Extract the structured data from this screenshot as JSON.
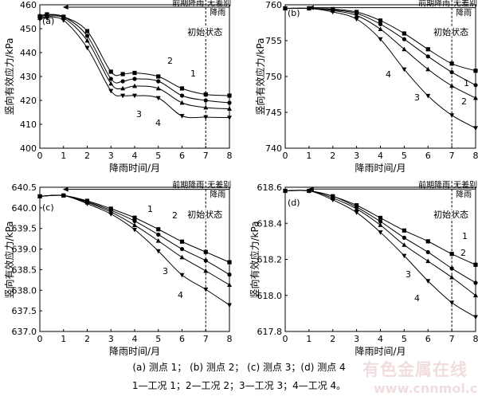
{
  "figure_caption_line1": "(a) 测点 1； (b) 测点 2； (c) 测点 3；(d) 测点 4",
  "figure_caption_line2": "1—工况 1；2—工况 2；3—工况 3；4—工况 4。",
  "watermark": {
    "line1": "有色金属在线",
    "line2": "www.cnnmol.com"
  },
  "colors": {
    "axis": "#000000",
    "line": "#000000",
    "watermark": "#d9a0a0"
  },
  "chart_data": [
    {
      "type": "line",
      "panel_label": "(a)",
      "xlabel": "降雨时间/月",
      "ylabel": "竖向有效应力/kPa",
      "xlim": [
        0,
        8
      ],
      "ylim": [
        400,
        460
      ],
      "xticks": [
        0,
        1,
        2,
        3,
        4,
        5,
        6,
        7,
        8
      ],
      "yticks": [
        400,
        410,
        420,
        430,
        440,
        450,
        460
      ],
      "x": [
        0,
        0.3,
        1,
        2,
        3,
        3.5,
        4,
        5,
        6,
        7,
        8
      ],
      "series": [
        {
          "name": "1",
          "marker": "square",
          "values": [
            455.2,
            456,
            455,
            449,
            432,
            431,
            431.5,
            430,
            425,
            422.5,
            422
          ]
        },
        {
          "name": "2",
          "marker": "circle",
          "values": [
            455,
            455.5,
            455,
            447,
            429,
            428,
            429,
            428,
            422,
            420,
            419
          ]
        },
        {
          "name": "3",
          "marker": "triangle",
          "values": [
            454.5,
            455,
            454.5,
            445,
            427,
            425,
            426,
            425,
            419,
            417,
            416.5
          ]
        },
        {
          "name": "4",
          "marker": "triangle-down",
          "values": [
            454,
            454.5,
            453.5,
            442,
            424,
            422,
            422,
            421,
            413.5,
            413,
            412.8
          ]
        }
      ],
      "series_labels": [
        "1",
        "2",
        "3",
        "4"
      ],
      "annotations": {
        "period_left": "前期降雨",
        "period_right": "无差别",
        "period_right2": "降雨",
        "initial_state": "初始状态"
      },
      "vline_x": 7,
      "arrow_y": 459
    },
    {
      "type": "line",
      "panel_label": "(b)",
      "xlabel": "降雨时间/月",
      "ylabel": "竖向有效应力/kPa",
      "xlim": [
        0,
        8
      ],
      "ylim": [
        740,
        760
      ],
      "xticks": [
        0,
        1,
        2,
        3,
        4,
        5,
        6,
        7,
        8
      ],
      "yticks": [
        740,
        745,
        750,
        755,
        760
      ],
      "x": [
        0,
        1,
        2,
        3,
        4,
        5,
        6,
        7,
        8
      ],
      "series": [
        {
          "name": "1",
          "marker": "square",
          "values": [
            759.5,
            759.5,
            759.4,
            759.0,
            757.8,
            756.0,
            753.8,
            751.8,
            750.8
          ]
        },
        {
          "name": "2",
          "marker": "circle",
          "values": [
            759.5,
            759.5,
            759.3,
            758.8,
            757.3,
            755.2,
            752.8,
            750.6,
            748.8
          ]
        },
        {
          "name": "3",
          "marker": "triangle",
          "values": [
            759.5,
            759.5,
            759.2,
            758.5,
            756.6,
            753.8,
            751.0,
            748.7,
            747.0
          ]
        },
        {
          "name": "4",
          "marker": "triangle-down",
          "values": [
            759.5,
            759.5,
            759.0,
            758.0,
            755.2,
            751.0,
            747.3,
            744.6,
            742.8
          ]
        }
      ],
      "series_labels": [
        "1",
        "2",
        "3",
        "4"
      ],
      "annotations": {
        "period_left": "前期降雨",
        "period_right": "无差别",
        "period_right2": "降雨",
        "initial_state": "初始状态"
      },
      "vline_x": 7,
      "arrow_y": 759.6
    },
    {
      "type": "line",
      "panel_label": "(c)",
      "xlabel": "降雨时间/月",
      "ylabel": "竖向有效应力/kPa",
      "xlim": [
        0,
        8
      ],
      "ylim": [
        637.0,
        640.5
      ],
      "xticks": [
        0,
        1,
        2,
        3,
        4,
        5,
        6,
        7,
        8
      ],
      "yticks": [
        637.0,
        637.5,
        638.0,
        638.5,
        639.0,
        639.5,
        640.0,
        640.5
      ],
      "x": [
        0,
        1,
        2,
        3,
        4,
        5,
        6,
        7,
        8
      ],
      "series": [
        {
          "name": "1",
          "marker": "square",
          "values": [
            640.28,
            640.3,
            640.17,
            639.98,
            639.76,
            639.48,
            639.18,
            638.93,
            638.68
          ]
        },
        {
          "name": "2",
          "marker": "circle",
          "values": [
            640.28,
            640.3,
            640.15,
            639.94,
            639.68,
            639.35,
            639.0,
            638.72,
            638.38
          ]
        },
        {
          "name": "3",
          "marker": "triangle",
          "values": [
            640.28,
            640.3,
            640.13,
            639.9,
            639.58,
            639.2,
            638.8,
            638.47,
            638.13
          ]
        },
        {
          "name": "4",
          "marker": "triangle-down",
          "values": [
            640.28,
            640.3,
            640.1,
            639.85,
            639.47,
            638.95,
            638.37,
            638.02,
            637.64
          ]
        }
      ],
      "series_labels": [
        "1",
        "2",
        "3",
        "4"
      ],
      "annotations": {
        "period_left": "前期降雨",
        "period_right": "无差别",
        "period_right2": "降雨",
        "initial_state": "初始状态"
      },
      "vline_x": 7,
      "arrow_y": 640.45
    },
    {
      "type": "line",
      "panel_label": "(d)",
      "xlabel": "降雨时间/月",
      "ylabel": "竖向有效应力/kPa",
      "xlim": [
        0,
        8
      ],
      "ylim": [
        617.8,
        618.6
      ],
      "xticks": [
        0,
        1,
        2,
        3,
        4,
        5,
        6,
        7,
        8
      ],
      "yticks": [
        617.8,
        618.0,
        618.2,
        618.4,
        618.6
      ],
      "x": [
        0,
        1,
        2,
        3,
        4,
        5,
        6,
        7,
        8
      ],
      "series": [
        {
          "name": "1",
          "marker": "square",
          "values": [
            618.58,
            618.58,
            618.55,
            618.5,
            618.43,
            618.36,
            618.3,
            618.23,
            618.17
          ]
        },
        {
          "name": "2",
          "marker": "circle",
          "values": [
            618.58,
            618.58,
            618.55,
            618.49,
            618.41,
            618.32,
            618.24,
            618.15,
            618.07
          ]
        },
        {
          "name": "3",
          "marker": "triangle",
          "values": [
            618.58,
            618.58,
            618.54,
            618.48,
            618.39,
            618.28,
            618.19,
            618.1,
            618.0
          ]
        },
        {
          "name": "4",
          "marker": "triangle-down",
          "values": [
            618.58,
            618.58,
            618.53,
            618.46,
            618.35,
            618.22,
            618.08,
            617.96,
            617.88
          ]
        }
      ],
      "series_labels": [
        "1",
        "2",
        "3",
        "4"
      ],
      "annotations": {
        "period_left": "前期降雨",
        "period_right": "无差别",
        "period_right2": "降雨",
        "initial_state": "初始状态"
      },
      "vline_x": 7,
      "arrow_y": 618.59
    }
  ]
}
